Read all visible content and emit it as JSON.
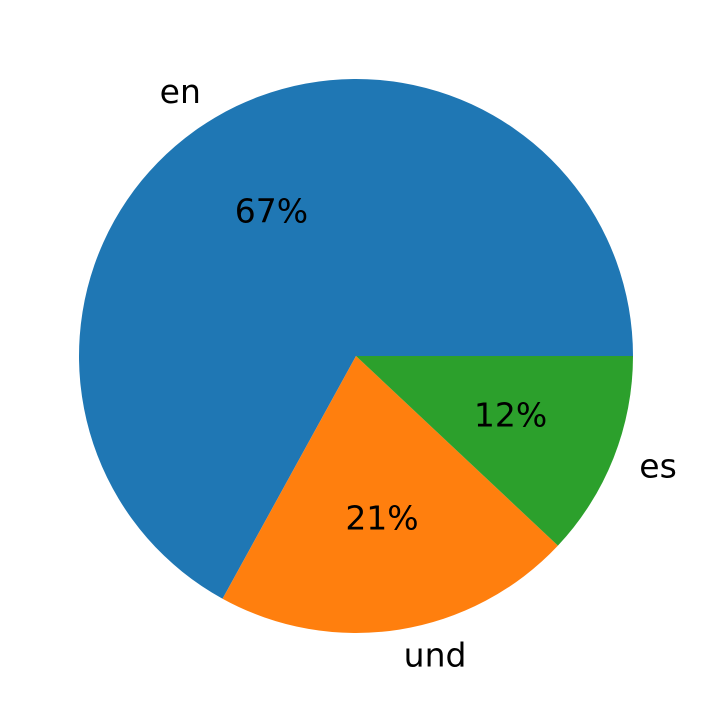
{
  "chart_data": {
    "type": "pie",
    "categories": [
      "en",
      "und",
      "es"
    ],
    "values": [
      67,
      21,
      12
    ],
    "value_labels": [
      "67%",
      "21%",
      "12%"
    ],
    "colors": [
      "#1f77b4",
      "#ff7f0e",
      "#2ca02c"
    ]
  }
}
